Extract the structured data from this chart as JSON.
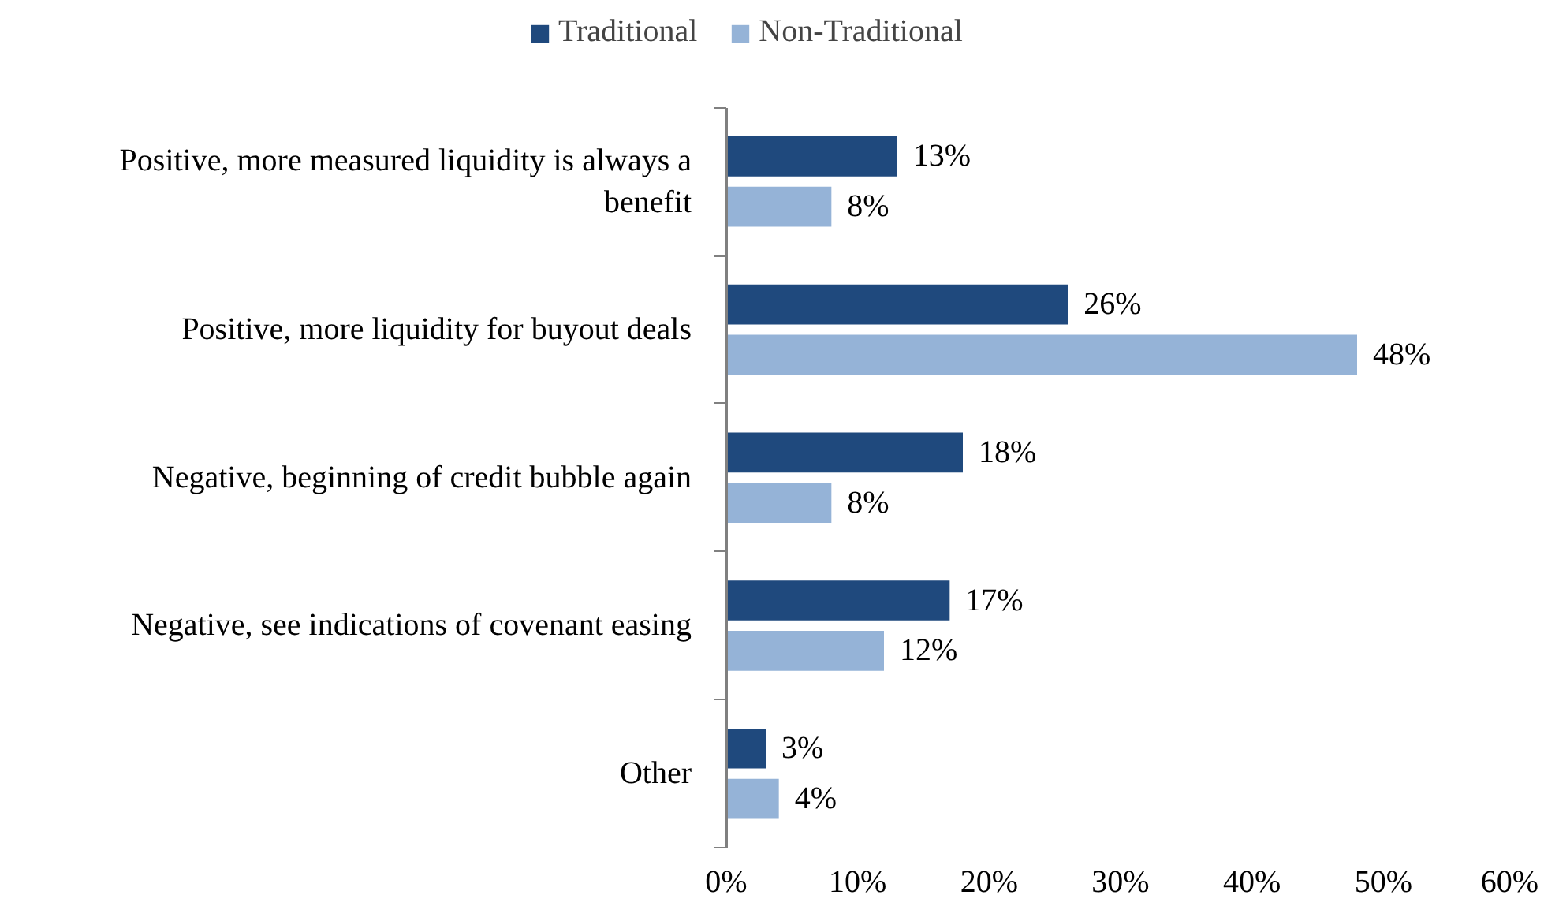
{
  "chart_data": {
    "type": "bar",
    "orientation": "horizontal",
    "categories": [
      "Positive, more measured liquidity is always a benefit",
      "Positive, more liquidity for buyout deals",
      "Negative, beginning of credit bubble again",
      "Negative, see indications of covenant easing",
      "Other"
    ],
    "series": [
      {
        "name": "Traditional",
        "color": "#1f497d",
        "values": [
          13,
          26,
          18,
          17,
          3
        ],
        "value_labels": [
          "13%",
          "26%",
          "18%",
          "17%",
          "3%"
        ]
      },
      {
        "name": "Non-Traditional",
        "color": "#95b3d7",
        "values": [
          8,
          48,
          8,
          12,
          4
        ],
        "value_labels": [
          "8%",
          "48%",
          "8%",
          "12%",
          "4%"
        ]
      }
    ],
    "xlim": [
      0,
      60
    ],
    "xticks": [
      {
        "value": 0,
        "label": "0%"
      },
      {
        "value": 10,
        "label": "10%"
      },
      {
        "value": 20,
        "label": "20%"
      },
      {
        "value": 30,
        "label": "30%"
      },
      {
        "value": 40,
        "label": "40%"
      },
      {
        "value": 50,
        "label": "50%"
      },
      {
        "value": 60,
        "label": "60%"
      }
    ],
    "grid": false,
    "legend": "top"
  }
}
